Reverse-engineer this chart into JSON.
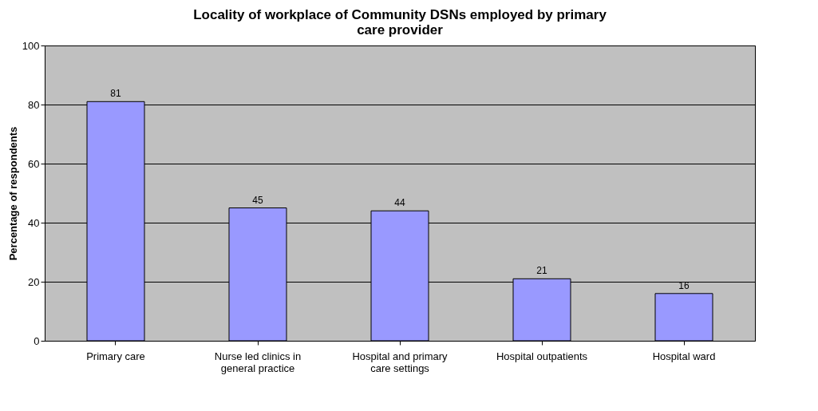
{
  "chart_data": {
    "type": "bar",
    "title": "Locality of workplace of Community DSNs employed by primary care provider",
    "ylabel": "Percentage of respondents",
    "categories": [
      "Primary care",
      "Nurse led clinics in general practice",
      "Hospital and primary care settings",
      "Hospital outpatients",
      "Hospital ward"
    ],
    "values": [
      81,
      45,
      44,
      21,
      16
    ],
    "color": "#9999ff",
    "ylim": [
      0,
      100
    ],
    "yticks": [
      0,
      20,
      40,
      60,
      80,
      100
    ],
    "grid": "y",
    "data_labels": true
  }
}
